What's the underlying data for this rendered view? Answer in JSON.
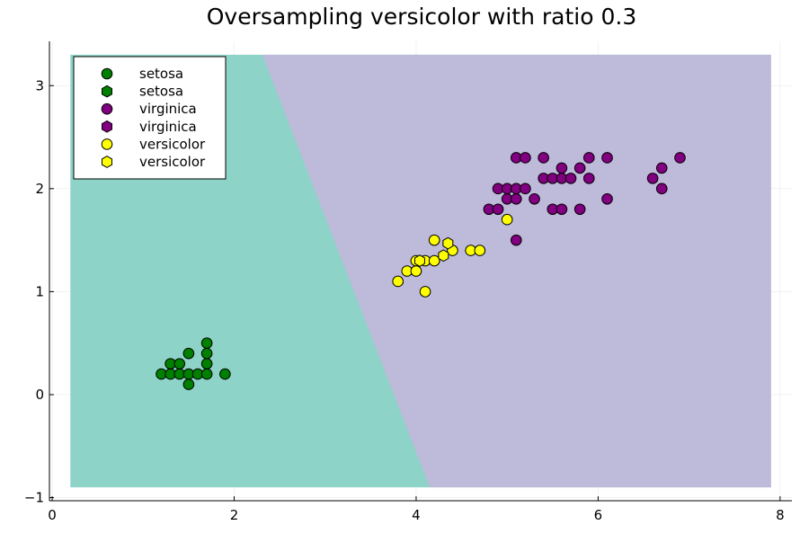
{
  "chart_data": {
    "type": "scatter",
    "title": "Oversampling versicolor with ratio 0.3",
    "xlabel": "",
    "ylabel": "",
    "xlim": [
      -0.03,
      8.13
    ],
    "ylim": [
      -1.03,
      3.43
    ],
    "xticks": [
      0,
      2,
      4,
      6,
      8
    ],
    "yticks": [
      -1,
      0,
      1,
      2,
      3
    ],
    "grid": true,
    "legend_position": "top-left",
    "colors": {
      "region_setosa": "#8dd3c7",
      "region_other": "#bebada",
      "setosa": "#008000",
      "virginica": "#800080",
      "versicolor": "#ffff00"
    },
    "decision_regions": {
      "extent": {
        "x": [
          0.2,
          7.9
        ],
        "y": [
          -0.9,
          3.3
        ]
      },
      "boundary": [
        [
          2.31,
          3.3
        ],
        [
          4.15,
          -0.9
        ]
      ]
    },
    "series": [
      {
        "name": "setosa",
        "marker": "circle",
        "color": "#008000",
        "points": [
          [
            1.2,
            0.2
          ],
          [
            1.3,
            0.2
          ],
          [
            1.4,
            0.2
          ],
          [
            1.5,
            0.2
          ],
          [
            1.6,
            0.2
          ],
          [
            1.7,
            0.2
          ],
          [
            1.9,
            0.2
          ],
          [
            1.3,
            0.3
          ],
          [
            1.4,
            0.3
          ],
          [
            1.7,
            0.3
          ],
          [
            1.5,
            0.4
          ],
          [
            1.7,
            0.4
          ],
          [
            1.7,
            0.5
          ],
          [
            1.5,
            0.1
          ]
        ]
      },
      {
        "name": "setosa",
        "marker": "hexagon",
        "color": "#008000",
        "points": []
      },
      {
        "name": "virginica",
        "marker": "circle",
        "color": "#800080",
        "points": [
          [
            5.1,
            2.3
          ],
          [
            5.2,
            2.3
          ],
          [
            5.4,
            2.3
          ],
          [
            5.9,
            2.3
          ],
          [
            6.1,
            2.3
          ],
          [
            6.9,
            2.3
          ],
          [
            5.6,
            2.2
          ],
          [
            5.8,
            2.2
          ],
          [
            6.7,
            2.2
          ],
          [
            5.4,
            2.1
          ],
          [
            5.5,
            2.1
          ],
          [
            5.6,
            2.1
          ],
          [
            5.7,
            2.1
          ],
          [
            5.9,
            2.1
          ],
          [
            6.6,
            2.1
          ],
          [
            4.9,
            2.0
          ],
          [
            5.0,
            2.0
          ],
          [
            5.1,
            2.0
          ],
          [
            5.2,
            2.0
          ],
          [
            6.7,
            2.0
          ],
          [
            5.0,
            1.9
          ],
          [
            5.1,
            1.9
          ],
          [
            5.3,
            1.9
          ],
          [
            6.1,
            1.9
          ],
          [
            4.8,
            1.8
          ],
          [
            4.9,
            1.8
          ],
          [
            5.5,
            1.8
          ],
          [
            5.6,
            1.8
          ],
          [
            5.8,
            1.8
          ],
          [
            5.1,
            1.5
          ]
        ]
      },
      {
        "name": "virginica",
        "marker": "hexagon",
        "color": "#800080",
        "points": []
      },
      {
        "name": "versicolor",
        "marker": "circle",
        "color": "#ffff00",
        "points": [
          [
            4.2,
            1.5
          ],
          [
            4.4,
            1.4
          ],
          [
            4.6,
            1.4
          ],
          [
            4.7,
            1.4
          ],
          [
            4.0,
            1.3
          ],
          [
            4.1,
            1.3
          ],
          [
            4.2,
            1.3
          ],
          [
            3.9,
            1.2
          ],
          [
            4.0,
            1.2
          ],
          [
            3.8,
            1.1
          ],
          [
            4.1,
            1.0
          ],
          [
            5.0,
            1.7
          ]
        ]
      },
      {
        "name": "versicolor",
        "marker": "hexagon",
        "color": "#ffff00",
        "points": [
          [
            4.35,
            1.47
          ],
          [
            4.3,
            1.35
          ],
          [
            4.04,
            1.3
          ]
        ]
      }
    ]
  }
}
